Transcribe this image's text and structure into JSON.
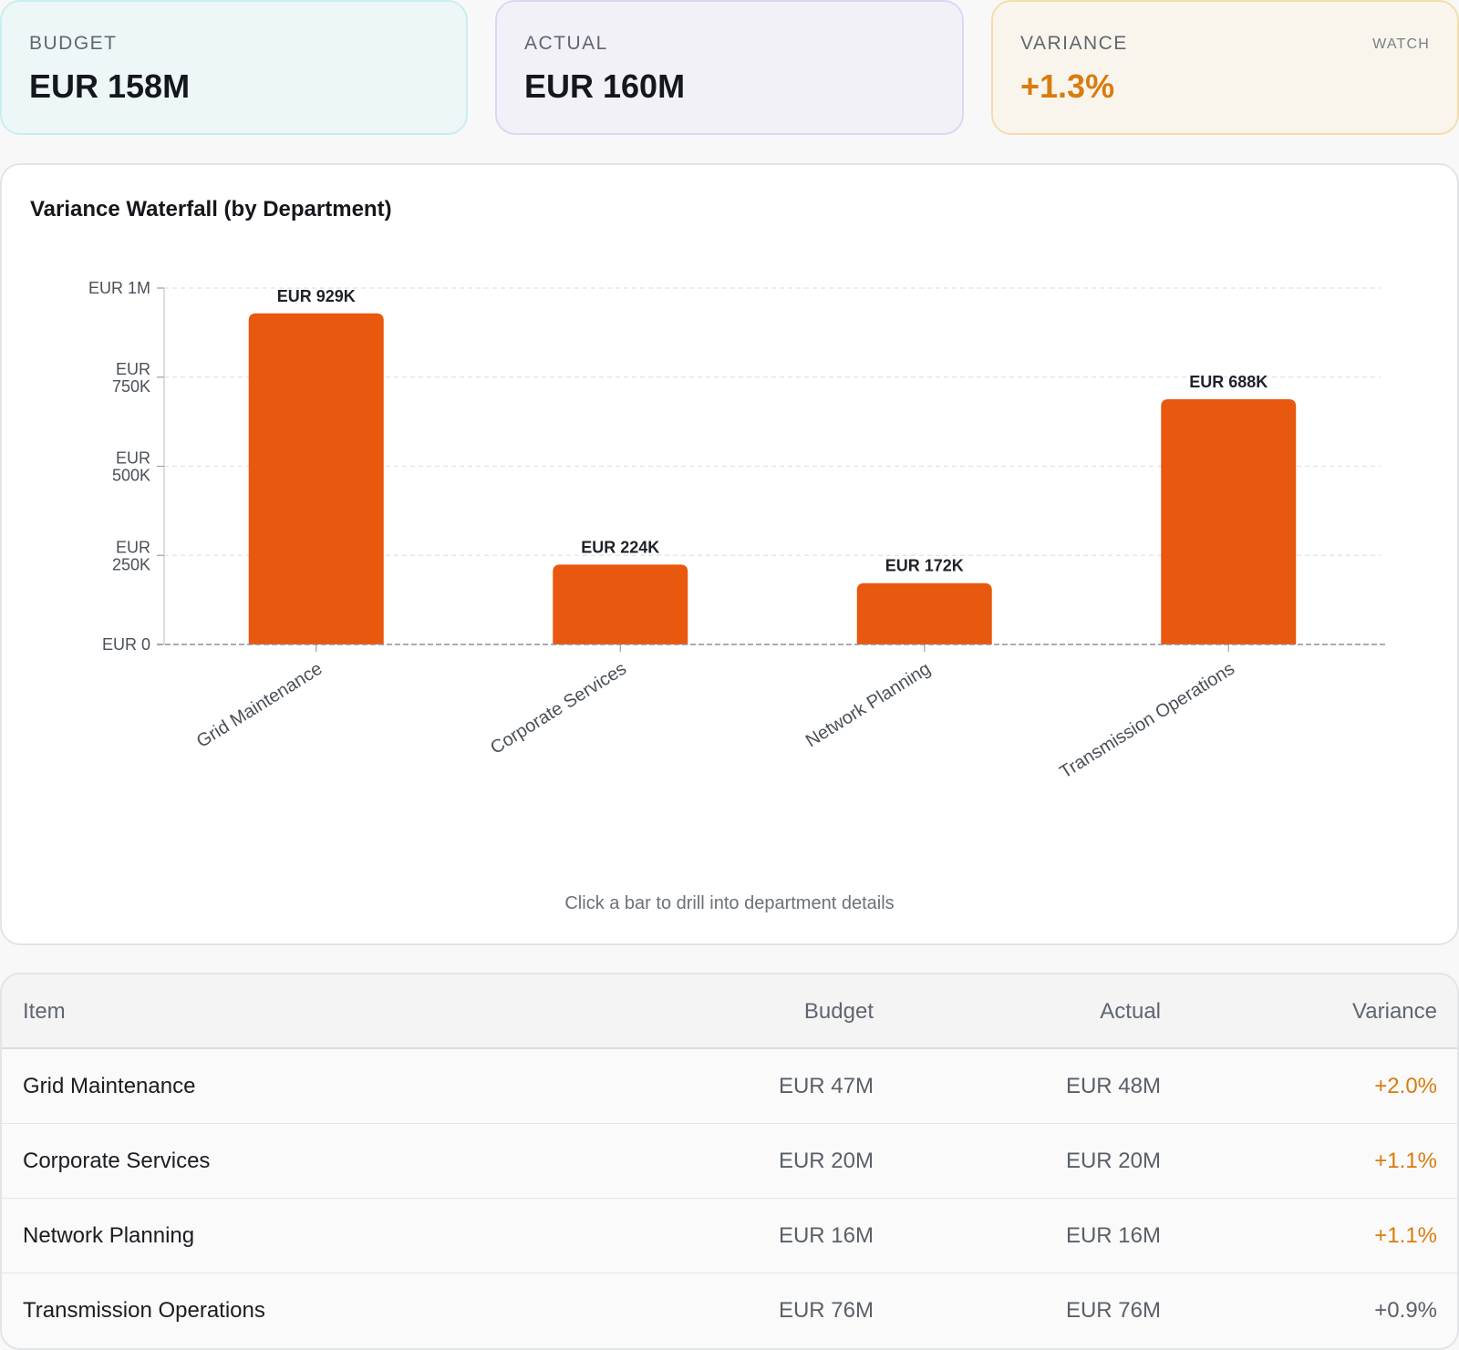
{
  "kpis": {
    "budget": {
      "label": "BUDGET",
      "value": "EUR 158M"
    },
    "actual": {
      "label": "ACTUAL",
      "value": "EUR 160M"
    },
    "variance": {
      "label": "VARIANCE",
      "value": "+1.3%",
      "badge": "WATCH"
    }
  },
  "chart": {
    "title": "Variance Waterfall (by Department)",
    "hint": "Click a bar to drill into department details"
  },
  "chart_data": {
    "type": "bar",
    "title": "Variance Waterfall (by Department)",
    "categories": [
      "Grid Maintenance",
      "Corporate Services",
      "Network Planning",
      "Transmission Operations"
    ],
    "values": [
      929000,
      224000,
      172000,
      688000
    ],
    "value_labels": [
      "EUR 929K",
      "EUR 224K",
      "EUR 172K",
      "EUR 688K"
    ],
    "ylim": [
      0,
      1000000
    ],
    "yticks": [
      0,
      250000,
      500000,
      750000,
      1000000
    ],
    "ytick_labels": [
      "EUR 0",
      "EUR 250K",
      "EUR 500K",
      "EUR 750K",
      "EUR 1M"
    ],
    "grid": true,
    "bar_color": "#e8580e"
  },
  "table": {
    "headers": {
      "item": "Item",
      "budget": "Budget",
      "actual": "Actual",
      "variance": "Variance"
    },
    "rows": [
      {
        "item": "Grid Maintenance",
        "budget": "EUR 47M",
        "actual": "EUR 48M",
        "variance": "+2.0%",
        "status": "watch"
      },
      {
        "item": "Corporate Services",
        "budget": "EUR 20M",
        "actual": "EUR 20M",
        "variance": "+1.1%",
        "status": "watch"
      },
      {
        "item": "Network Planning",
        "budget": "EUR 16M",
        "actual": "EUR 16M",
        "variance": "+1.1%",
        "status": "watch"
      },
      {
        "item": "Transmission Operations",
        "budget": "EUR 76M",
        "actual": "EUR 76M",
        "variance": "+0.9%",
        "status": "ok"
      }
    ]
  },
  "colors": {
    "accent": "#e8580e",
    "watch": "#d97b0f",
    "neutral": "#5a6068"
  }
}
